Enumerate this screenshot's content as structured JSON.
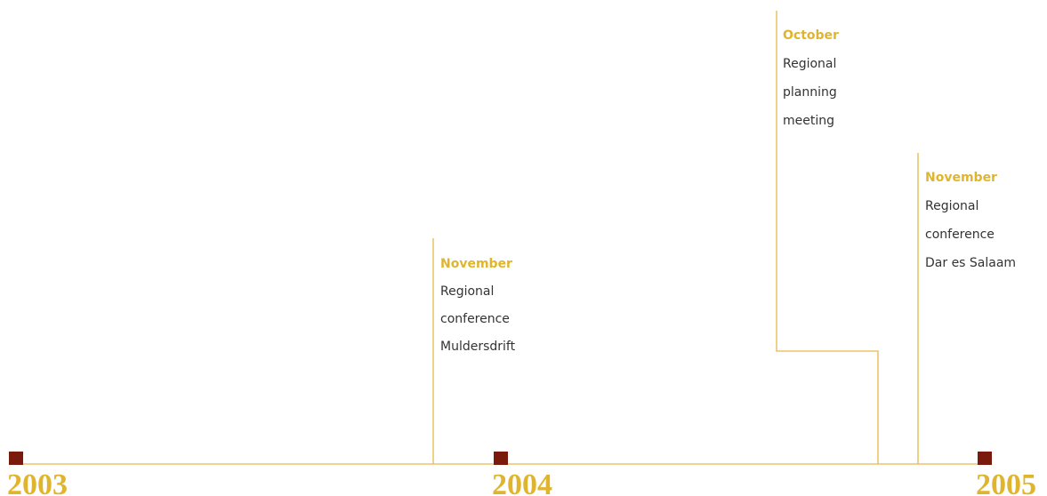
{
  "years": [
    "2003",
    "2004",
    "2005"
  ],
  "events": [
    {
      "month": "November",
      "lines": [
        "Regional",
        "conference",
        "Muldersdrift"
      ]
    },
    {
      "month": "October",
      "lines": [
        "Regional",
        "planning",
        "meeting"
      ]
    },
    {
      "month": "November",
      "lines": [
        "Regional",
        "conference",
        "Dar es Salaam"
      ]
    }
  ]
}
